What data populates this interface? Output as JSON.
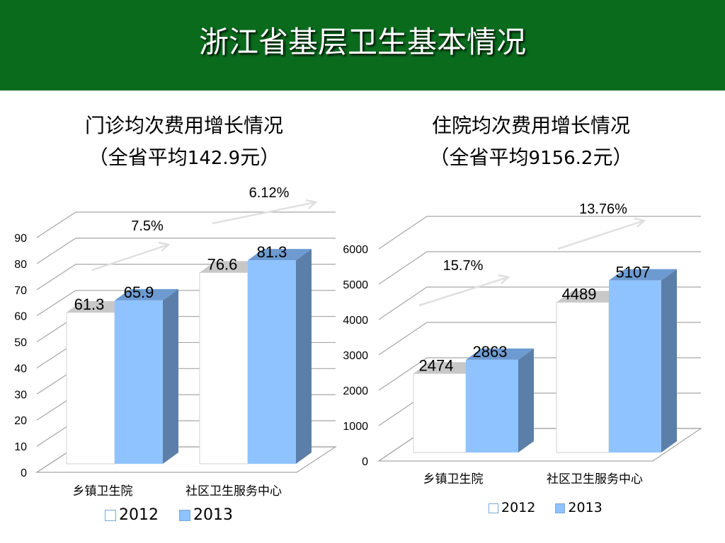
{
  "title": "浙江省基层卫生基本情况",
  "colors": {
    "banner": "#0a6b1d",
    "series2012": "#ffffff",
    "series2013": "#8fc3ff",
    "side": "#5b7fa8",
    "top2013": "#6d9bd1",
    "top2012": "#c8c8c8",
    "grid": "#a6a6a6"
  },
  "chart_data": [
    {
      "type": "bar",
      "title": "门诊均次费用增长情况",
      "subtitle_prefix": "（全省平均",
      "subtitle_value": "142.9",
      "subtitle_suffix": "元）",
      "categories": [
        "乡镇卫生院",
        "社区卫生服务中心"
      ],
      "series": [
        {
          "name": "2012",
          "values": [
            61.3,
            76.6
          ],
          "labels": [
            "61.3",
            "76.6"
          ]
        },
        {
          "name": "2013",
          "values": [
            65.9,
            81.3
          ],
          "labels": [
            "65.9",
            "81.3"
          ]
        }
      ],
      "ylim": [
        0,
        90
      ],
      "yticks": [
        "0",
        "10",
        "20",
        "30",
        "40",
        "50",
        "60",
        "70",
        "80",
        "90"
      ],
      "annotations": [
        "7.5%",
        "6.12%"
      ],
      "grid": true,
      "legend": "bottom"
    },
    {
      "type": "bar",
      "title": "住院均次费用增长情况",
      "subtitle_prefix": "（全省平均",
      "subtitle_value": "9156.2",
      "subtitle_suffix": "元）",
      "categories": [
        "乡镇卫生院",
        "社区卫生服务中心"
      ],
      "series": [
        {
          "name": "2012",
          "values": [
            2474,
            4489
          ],
          "labels": [
            "2474",
            "4489"
          ]
        },
        {
          "name": "2013",
          "values": [
            2863,
            5107
          ],
          "labels": [
            "2863",
            "5107"
          ]
        }
      ],
      "ylim": [
        0,
        6000
      ],
      "yticks": [
        "0",
        "1000",
        "2000",
        "3000",
        "4000",
        "5000",
        "6000"
      ],
      "annotations": [
        "15.7%",
        "13.76%"
      ],
      "grid": true,
      "legend": "bottom"
    }
  ]
}
